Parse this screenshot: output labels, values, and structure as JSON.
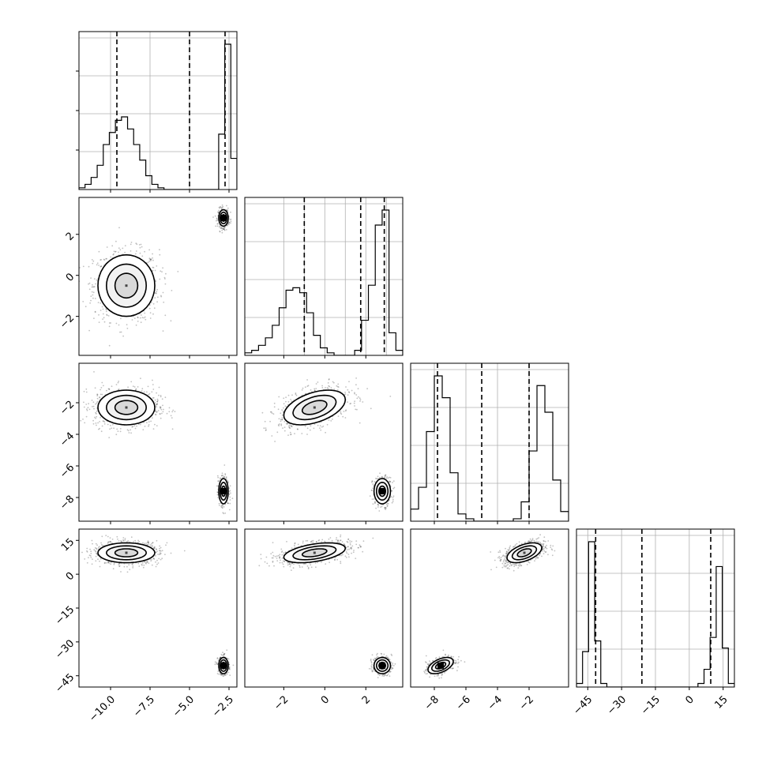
{
  "chart_data": {
    "type": "corner",
    "parameters": [
      {
        "range": [
          -12.0,
          -2.0
        ],
        "tick_values": [
          -10.0,
          -7.5,
          -5.0,
          -2.5
        ],
        "tick_labels": [
          "−10.0",
          "−7.5",
          "−5.0",
          "−2.5"
        ],
        "quantiles": [
          -9.6,
          -5.0,
          -2.75
        ],
        "hist": [
          0.1,
          0.3,
          0.7,
          1.4,
          2.6,
          3.3,
          4.0,
          4.2,
          3.5,
          2.6,
          1.7,
          0.8,
          0.3,
          0.1,
          0.0,
          0.0,
          0.0,
          0.0,
          0.0,
          0.0,
          0.0,
          0.0,
          0.0,
          3.2,
          8.4,
          1.8
        ]
      },
      {
        "range": [
          -3.9,
          3.8
        ],
        "tick_values": [
          -2,
          0,
          2
        ],
        "tick_labels": [
          "−2",
          "0",
          "2"
        ],
        "quantiles": [
          -1.0,
          1.75,
          2.9
        ],
        "hist": [
          0.1,
          0.2,
          0.4,
          0.7,
          1.2,
          1.9,
          2.6,
          2.7,
          2.5,
          1.7,
          0.8,
          0.3,
          0.1,
          0.0,
          0.0,
          0.0,
          0.2,
          1.4,
          2.8,
          5.2,
          5.8,
          0.9,
          0.2
        ]
      },
      {
        "range": [
          -9.5,
          0.5
        ],
        "tick_values": [
          -8,
          -6,
          -4,
          -2
        ],
        "tick_labels": [
          "−8",
          "−6",
          "−4",
          "−2"
        ],
        "quantiles": [
          -7.8,
          -5.0,
          -2.0
        ],
        "hist": [
          0.5,
          1.4,
          3.7,
          6.0,
          5.1,
          2.0,
          0.3,
          0.1,
          0.0,
          0.0,
          0.0,
          0.0,
          0.0,
          0.1,
          0.8,
          2.9,
          5.6,
          4.5,
          1.7,
          0.4
        ]
      },
      {
        "range": [
          -50,
          20
        ],
        "tick_values": [
          -45,
          -30,
          -15,
          0,
          15
        ],
        "tick_labels": [
          "−45",
          "−30",
          "−15",
          "0",
          "15"
        ],
        "quantiles": [
          -41.5,
          -21.0,
          9.5
        ],
        "hist": [
          0.1,
          1.0,
          4.1,
          1.3,
          0.1,
          0.0,
          0.0,
          0.0,
          0.0,
          0.0,
          0.0,
          0.0,
          0.0,
          0.0,
          0.0,
          0.0,
          0.0,
          0.0,
          0.0,
          0.0,
          0.1,
          0.5,
          1.4,
          3.4,
          1.1,
          0.1
        ]
      }
    ],
    "modes": [
      {
        "mean": [
          -9.0,
          -0.5,
          -2.3,
          9.5
        ],
        "sd": [
          0.9,
          0.75,
          0.55,
          2.2
        ]
      },
      {
        "mean": [
          -2.85,
          2.8,
          -7.6,
          -40.5
        ],
        "sd": [
          0.15,
          0.2,
          0.4,
          1.8
        ]
      }
    ],
    "grid": true,
    "grid_ticks": {
      "0": [
        -10,
        -7.5,
        -5,
        -2.5
      ],
      "1": [
        -2,
        -1,
        0,
        1,
        2,
        3
      ],
      "2": [
        -8,
        -6,
        -4,
        -2
      ],
      "3": [
        -45,
        -30,
        -15,
        0,
        15
      ]
    }
  }
}
